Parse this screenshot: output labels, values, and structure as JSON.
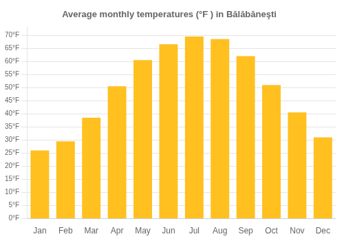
{
  "chart_data": {
    "type": "bar",
    "title": "Average monthly temperatures (°F ) in Bălăbăneşti",
    "categories": [
      "Jan",
      "Feb",
      "Mar",
      "Apr",
      "May",
      "Jun",
      "Jul",
      "Aug",
      "Sep",
      "Oct",
      "Nov",
      "Dec"
    ],
    "values": [
      26,
      29.5,
      38.5,
      50.5,
      60.5,
      66.5,
      69.5,
      68.5,
      62,
      51,
      40.5,
      31
    ],
    "color": "#FFC020",
    "ylim": [
      0,
      73
    ],
    "yticks": [
      {
        "value": 0,
        "label": "0°F"
      },
      {
        "value": 5,
        "label": "5°F"
      },
      {
        "value": 10,
        "label": "10°F"
      },
      {
        "value": 15,
        "label": "15°F"
      },
      {
        "value": 20,
        "label": "20°F"
      },
      {
        "value": 25,
        "label": "25°F"
      },
      {
        "value": 30,
        "label": "30°F"
      },
      {
        "value": 35,
        "label": "35°F"
      },
      {
        "value": 40,
        "label": "40°F"
      },
      {
        "value": 45,
        "label": "45°F"
      },
      {
        "value": 50,
        "label": "50°F"
      },
      {
        "value": 55,
        "label": "55°F"
      },
      {
        "value": 60,
        "label": "60°F"
      },
      {
        "value": 65,
        "label": "65°F"
      },
      {
        "value": 70,
        "label": "70°F"
      }
    ],
    "grid": true
  }
}
